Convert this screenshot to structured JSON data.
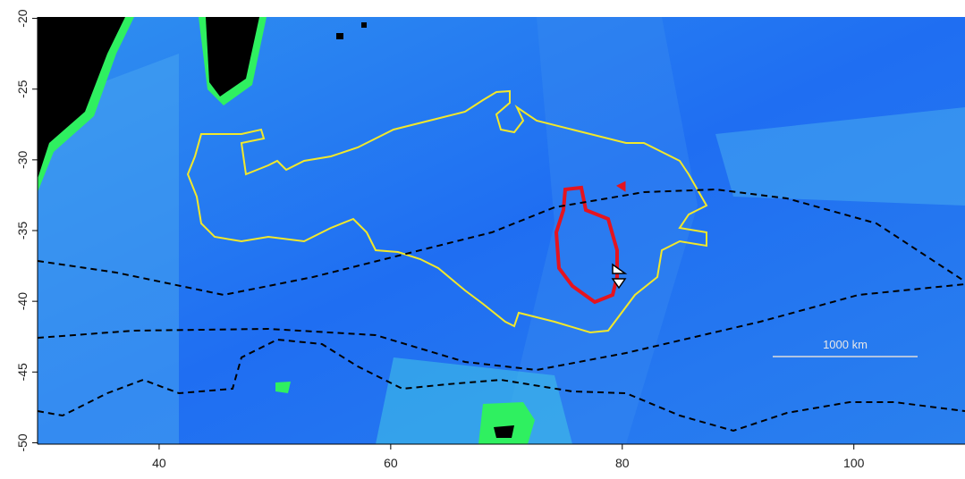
{
  "chart_data": {
    "type": "map",
    "xlim": [
      29.5,
      109.6
    ],
    "ylim": [
      -50.1,
      -19.9
    ],
    "xticks": [
      40,
      60,
      80,
      100
    ],
    "yticks": [
      -20,
      -25,
      -30,
      -35,
      -40,
      -45,
      -50
    ],
    "scale_label": "1000 km"
  }
}
